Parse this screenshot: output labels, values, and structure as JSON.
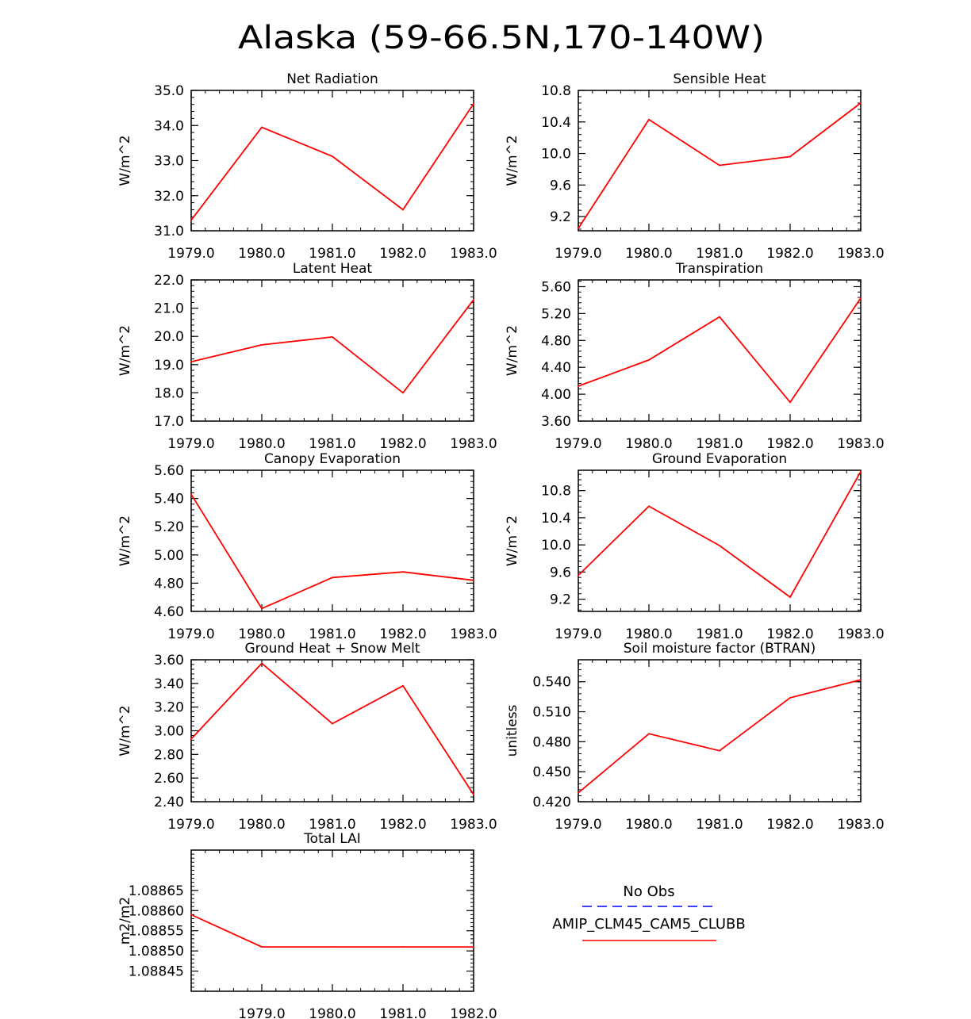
{
  "figure": {
    "title": "Alaska (59-66.5N,170-140W)"
  },
  "colors": {
    "model": "#ff0000",
    "obs": "#0000ff",
    "axis": "#000000"
  },
  "legend": {
    "obs_label": "No Obs",
    "model_label": "AMIP_CLM45_CAM5_CLUBB",
    "placement": "bottom-right"
  },
  "chart_data": [
    {
      "type": "line",
      "title": "Net Radiation",
      "ylabel": "W/m^2",
      "x": [
        1979.0,
        1980.0,
        1981.0,
        1982.0,
        1983.0
      ],
      "xticks": [
        "1979.0",
        "1980.0",
        "1981.0",
        "1982.0",
        "1983.0"
      ],
      "ylim": [
        31.0,
        35.0
      ],
      "yticks": [
        "31.0",
        "32.0",
        "33.0",
        "34.0",
        "35.0"
      ],
      "yticks_v": [
        31.0,
        32.0,
        33.0,
        34.0,
        35.0
      ],
      "series": [
        {
          "name": "AMIP_CLM45_CAM5_CLUBB",
          "values": [
            31.3,
            33.95,
            33.12,
            31.6,
            34.62
          ]
        }
      ]
    },
    {
      "type": "line",
      "title": "Sensible Heat",
      "ylabel": "W/m^2",
      "x": [
        1979.0,
        1980.0,
        1981.0,
        1982.0,
        1983.0
      ],
      "xticks": [
        "1979.0",
        "1980.0",
        "1981.0",
        "1982.0",
        "1983.0"
      ],
      "ylim": [
        9.02,
        10.8
      ],
      "yticks": [
        "9.2",
        "9.6",
        "10.0",
        "10.4",
        "10.8"
      ],
      "yticks_v": [
        9.2,
        9.6,
        10.0,
        10.4,
        10.8
      ],
      "series": [
        {
          "name": "AMIP_CLM45_CAM5_CLUBB",
          "values": [
            9.05,
            10.43,
            9.85,
            9.96,
            10.64
          ]
        }
      ]
    },
    {
      "type": "line",
      "title": "Latent Heat",
      "ylabel": "W/m^2",
      "x": [
        1979.0,
        1980.0,
        1981.0,
        1982.0,
        1983.0
      ],
      "xticks": [
        "1979.0",
        "1980.0",
        "1981.0",
        "1982.0",
        "1983.0"
      ],
      "ylim": [
        17.0,
        22.0
      ],
      "yticks": [
        "17.0",
        "18.0",
        "19.0",
        "20.0",
        "21.0",
        "22.0"
      ],
      "yticks_v": [
        17.0,
        18.0,
        19.0,
        20.0,
        21.0,
        22.0
      ],
      "series": [
        {
          "name": "AMIP_CLM45_CAM5_CLUBB",
          "values": [
            19.1,
            19.7,
            19.98,
            18.0,
            21.3
          ]
        }
      ]
    },
    {
      "type": "line",
      "title": "Transpiration",
      "ylabel": "W/m^2",
      "x": [
        1979.0,
        1980.0,
        1981.0,
        1982.0,
        1983.0
      ],
      "xticks": [
        "1979.0",
        "1980.0",
        "1981.0",
        "1982.0",
        "1983.0"
      ],
      "ylim": [
        3.6,
        5.7
      ],
      "yticks": [
        "3.60",
        "4.00",
        "4.40",
        "4.80",
        "5.20",
        "5.60"
      ],
      "yticks_v": [
        3.6,
        4.0,
        4.4,
        4.8,
        5.2,
        5.6
      ],
      "series": [
        {
          "name": "AMIP_CLM45_CAM5_CLUBB",
          "values": [
            4.12,
            4.51,
            5.15,
            3.88,
            5.43
          ]
        }
      ]
    },
    {
      "type": "line",
      "title": "Canopy Evaporation",
      "ylabel": "W/m^2",
      "x": [
        1979.0,
        1980.0,
        1981.0,
        1982.0,
        1983.0
      ],
      "xticks": [
        "1979.0",
        "1980.0",
        "1981.0",
        "1982.0",
        "1983.0"
      ],
      "ylim": [
        4.6,
        5.6
      ],
      "yticks": [
        "4.60",
        "4.80",
        "5.00",
        "5.20",
        "5.40",
        "5.60"
      ],
      "yticks_v": [
        4.6,
        4.8,
        5.0,
        5.2,
        5.4,
        5.6
      ],
      "series": [
        {
          "name": "AMIP_CLM45_CAM5_CLUBB",
          "values": [
            5.43,
            4.62,
            4.84,
            4.88,
            4.82
          ]
        }
      ]
    },
    {
      "type": "line",
      "title": "Ground Evaporation",
      "ylabel": "W/m^2",
      "x": [
        1979.0,
        1980.0,
        1981.0,
        1982.0,
        1983.0
      ],
      "xticks": [
        "1979.0",
        "1980.0",
        "1981.0",
        "1982.0",
        "1983.0"
      ],
      "ylim": [
        9.02,
        11.1
      ],
      "yticks": [
        "9.2",
        "9.6",
        "10.0",
        "10.4",
        "10.8"
      ],
      "yticks_v": [
        9.2,
        9.6,
        10.0,
        10.4,
        10.8
      ],
      "series": [
        {
          "name": "AMIP_CLM45_CAM5_CLUBB",
          "values": [
            9.55,
            10.57,
            9.99,
            9.23,
            11.08
          ]
        }
      ]
    },
    {
      "type": "line",
      "title": "Ground Heat + Snow Melt",
      "ylabel": "W/m^2",
      "x": [
        1979.0,
        1980.0,
        1981.0,
        1982.0,
        1983.0
      ],
      "xticks": [
        "1979.0",
        "1980.0",
        "1981.0",
        "1982.0",
        "1983.0"
      ],
      "ylim": [
        2.4,
        3.6
      ],
      "yticks": [
        "2.40",
        "2.60",
        "2.80",
        "3.00",
        "3.20",
        "3.40",
        "3.60"
      ],
      "yticks_v": [
        2.4,
        2.6,
        2.8,
        3.0,
        3.2,
        3.4,
        3.6
      ],
      "series": [
        {
          "name": "AMIP_CLM45_CAM5_CLUBB",
          "values": [
            2.93,
            3.57,
            3.06,
            3.38,
            2.46
          ]
        }
      ]
    },
    {
      "type": "line",
      "title": "Soil moisture factor (BTRAN)",
      "ylabel": "unitless",
      "x": [
        1979.0,
        1980.0,
        1981.0,
        1982.0,
        1983.0
      ],
      "xticks": [
        "1979.0",
        "1980.0",
        "1981.0",
        "1982.0",
        "1983.0"
      ],
      "ylim": [
        0.42,
        0.562
      ],
      "yticks": [
        "0.420",
        "0.450",
        "0.480",
        "0.510",
        "0.540"
      ],
      "yticks_v": [
        0.42,
        0.45,
        0.48,
        0.51,
        0.54
      ],
      "series": [
        {
          "name": "AMIP_CLM45_CAM5_CLUBB",
          "values": [
            0.429,
            0.488,
            0.471,
            0.524,
            0.542
          ]
        }
      ]
    },
    {
      "type": "line",
      "title": "Total LAI",
      "ylabel": "m2/m2",
      "x": [
        1978.0,
        1979.0,
        1980.0,
        1981.0,
        1982.0
      ],
      "xticks": [
        "1979.0",
        "1980.0",
        "1981.0",
        "1982.0"
      ],
      "xticks_v": [
        1979.0,
        1980.0,
        1981.0,
        1982.0
      ],
      "xlim": [
        1978.0,
        1982.0
      ],
      "ylim": [
        1.0884,
        1.08875
      ],
      "yticks": [
        "1.08845",
        "1.08850",
        "1.08855",
        "1.08860",
        "1.08865"
      ],
      "yticks_v": [
        1.08845,
        1.0885,
        1.08855,
        1.0886,
        1.08865
      ],
      "series": [
        {
          "name": "AMIP_CLM45_CAM5_CLUBB",
          "values": [
            1.08859,
            1.08851,
            1.08851,
            1.08851,
            1.08851
          ]
        }
      ]
    }
  ]
}
